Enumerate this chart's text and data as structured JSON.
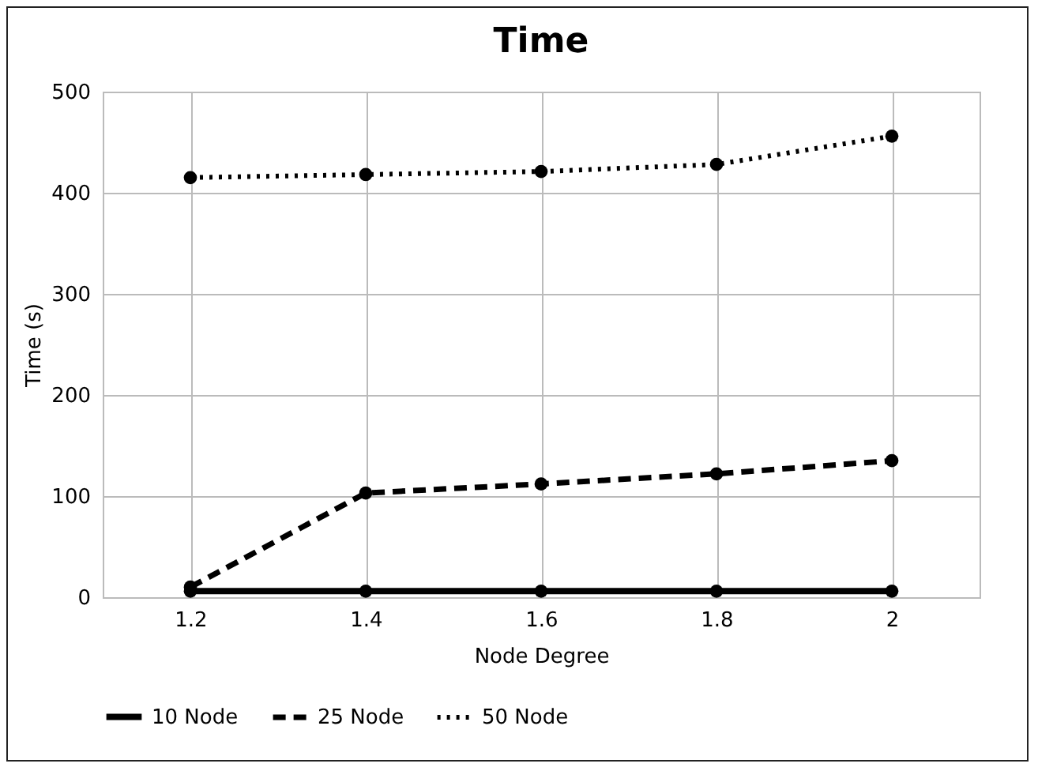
{
  "chart_data": {
    "type": "line",
    "title": "Time",
    "xlabel": "Node Degree",
    "ylabel": "Time (s)",
    "categories": [
      "1.2",
      "1.4",
      "1.6",
      "1.8",
      "2"
    ],
    "series": [
      {
        "name": "10 Node",
        "color": "#000000",
        "line_style": "solid",
        "values": [
          6,
          6,
          6,
          6,
          6
        ]
      },
      {
        "name": "25 Node",
        "color": "#000000",
        "line_style": "dashed",
        "values": [
          10,
          103,
          112,
          122,
          135
        ]
      },
      {
        "name": "50 Node",
        "color": "#000000",
        "line_style": "dotted",
        "values": [
          415,
          418,
          421,
          428,
          456
        ]
      }
    ],
    "ylim": [
      0,
      500
    ],
    "yticks": [
      0,
      100,
      200,
      300,
      400,
      500
    ],
    "grid": true,
    "legend": "bottom",
    "marker": "circle"
  }
}
